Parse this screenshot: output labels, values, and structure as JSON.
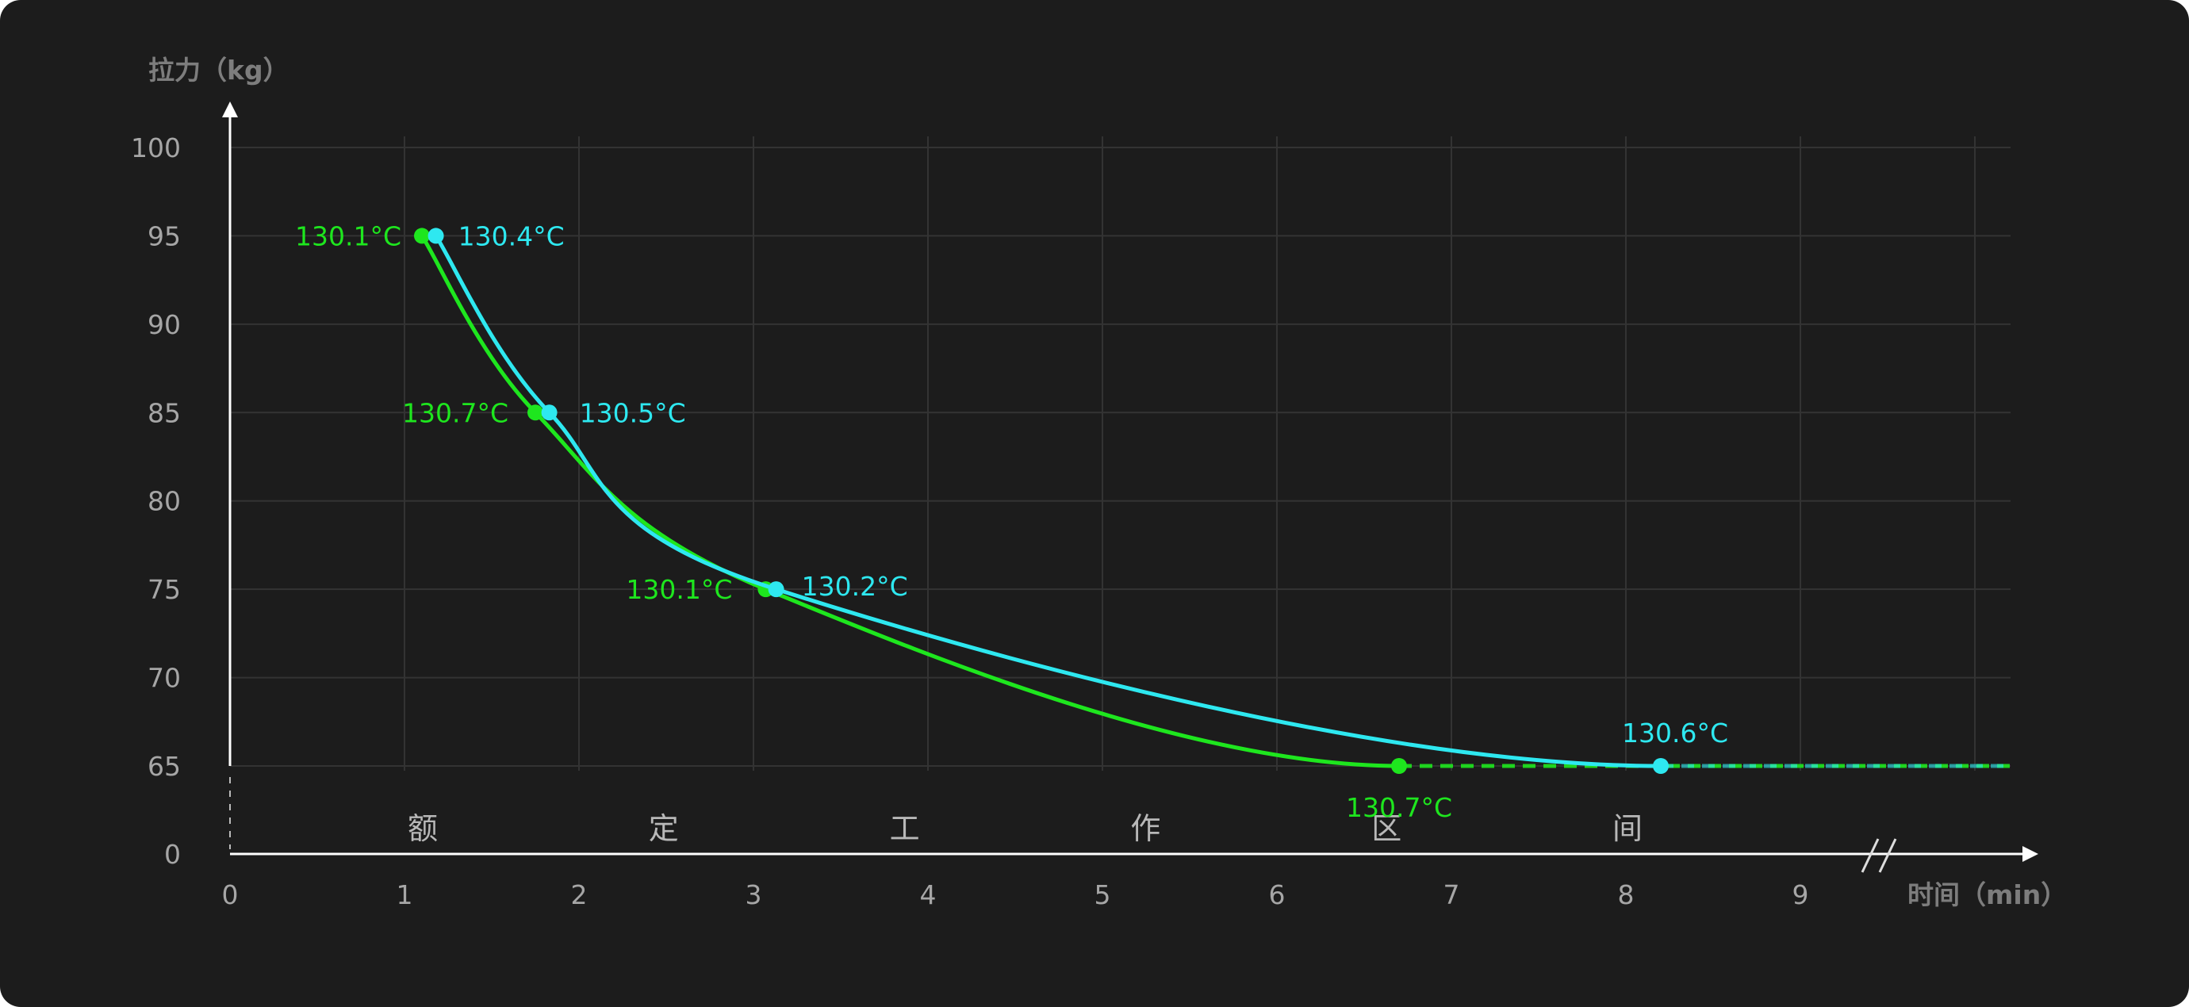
{
  "chart_data": {
    "type": "line",
    "ylabel": "拉力（kg）",
    "xlabel": "时间（min）",
    "xlim": [
      0,
      10.2
    ],
    "ylim": [
      60,
      100
    ],
    "x_ticks": [
      "0",
      "1",
      "2",
      "3",
      "4",
      "5",
      "6",
      "7",
      "8",
      "9"
    ],
    "y_ticks": [
      "0",
      "65",
      "70",
      "75",
      "80",
      "85",
      "90",
      "95",
      "100"
    ],
    "y_axis_break": true,
    "x_axis_break": true,
    "grid": true,
    "zone_label": [
      "额",
      "定",
      "工",
      "作",
      "区",
      "间"
    ],
    "colors": {
      "background": "#1c1c1c",
      "grid": "#333333",
      "axis": "#ffffff",
      "green": "#1ee61e",
      "cyan": "#2ee8f0"
    },
    "series": [
      {
        "color": "#1ee61e",
        "points": [
          {
            "x": 1.1,
            "y": 95,
            "label": "130.1°C"
          },
          {
            "x": 1.75,
            "y": 85,
            "label": "130.7°C"
          },
          {
            "x": 3.07,
            "y": 75,
            "label": "130.1°C"
          },
          {
            "x": 6.7,
            "y": 65,
            "label": "130.7°C"
          }
        ],
        "dashed_from_x": 6.7,
        "dashed_to_x": 10.2,
        "dashed_y": 65
      },
      {
        "color": "#2ee8f0",
        "points": [
          {
            "x": 1.18,
            "y": 95,
            "label": "130.4°C"
          },
          {
            "x": 1.83,
            "y": 85,
            "label": "130.5°C"
          },
          {
            "x": 3.13,
            "y": 75,
            "label": "130.2°C"
          },
          {
            "x": 8.2,
            "y": 65,
            "label": "130.6°C"
          }
        ],
        "dashed_from_x": 8.2,
        "dashed_to_x": 10.2,
        "dashed_y": 65
      }
    ]
  }
}
